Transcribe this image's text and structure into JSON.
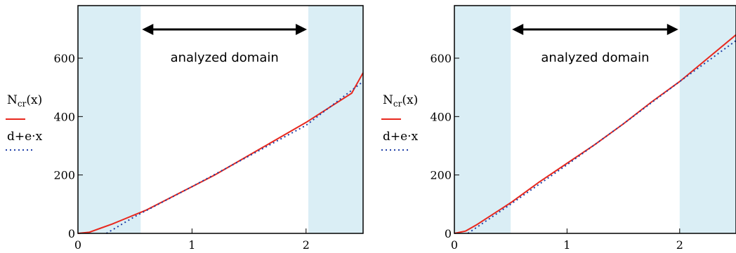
{
  "chart_data": [
    {
      "type": "line",
      "xlim": [
        0,
        2.5
      ],
      "ylim": [
        0,
        780
      ],
      "x_ticks": [
        "0",
        "1",
        "2"
      ],
      "y_ticks": [
        "0",
        "200",
        "400",
        "600"
      ],
      "shaded_regions": [
        [
          0,
          0.55
        ],
        [
          2.02,
          2.5
        ]
      ],
      "annotation": "analyzed domain",
      "annotation_arrow_x": [
        0.55,
        2.02
      ],
      "legend": {
        "line1": "N",
        "line1_sub": "cr",
        "line1_arg": "(x)",
        "line2": "d+e·x"
      },
      "series": [
        {
          "style": "solid",
          "color": "#e8281e",
          "x": [
            0,
            0.1,
            0.2,
            0.3,
            0.4,
            0.5,
            0.6,
            0.8,
            1.0,
            1.2,
            1.4,
            1.6,
            1.8,
            2.0,
            2.2,
            2.4,
            2.5
          ],
          "y": [
            0,
            4,
            18,
            32,
            48,
            64,
            80,
            120,
            160,
            200,
            245,
            290,
            335,
            380,
            430,
            480,
            550
          ]
        },
        {
          "style": "dotted",
          "color": "#1f3fa6",
          "x": [
            0.25,
            0.5,
            1.0,
            1.5,
            2.0,
            2.5
          ],
          "y": [
            0,
            58,
            160,
            265,
            370,
            520
          ]
        }
      ]
    },
    {
      "type": "line",
      "xlim": [
        0,
        2.5
      ],
      "ylim": [
        0,
        780
      ],
      "x_ticks": [
        "0",
        "1",
        "2"
      ],
      "y_ticks": [
        "0",
        "200",
        "400",
        "600"
      ],
      "shaded_regions": [
        [
          0,
          0.5
        ],
        [
          2.0,
          2.5
        ]
      ],
      "annotation": "analyzed domain",
      "annotation_arrow_x": [
        0.5,
        2.0
      ],
      "legend": {
        "line1": "N",
        "line1_sub": "cr",
        "line1_arg": "(x)",
        "line2": "d+e·x"
      },
      "series": [
        {
          "style": "solid",
          "color": "#e8281e",
          "x": [
            0,
            0.1,
            0.2,
            0.3,
            0.4,
            0.5,
            0.75,
            1.0,
            1.25,
            1.5,
            1.75,
            2.0,
            2.25,
            2.5
          ],
          "y": [
            0,
            8,
            30,
            55,
            80,
            105,
            175,
            240,
            305,
            375,
            450,
            520,
            600,
            680
          ]
        },
        {
          "style": "dotted",
          "color": "#1f3fa6",
          "x": [
            0.12,
            0.5,
            1.0,
            1.5,
            2.0,
            2.5
          ],
          "y": [
            0,
            100,
            235,
            375,
            520,
            660
          ]
        }
      ]
    }
  ]
}
